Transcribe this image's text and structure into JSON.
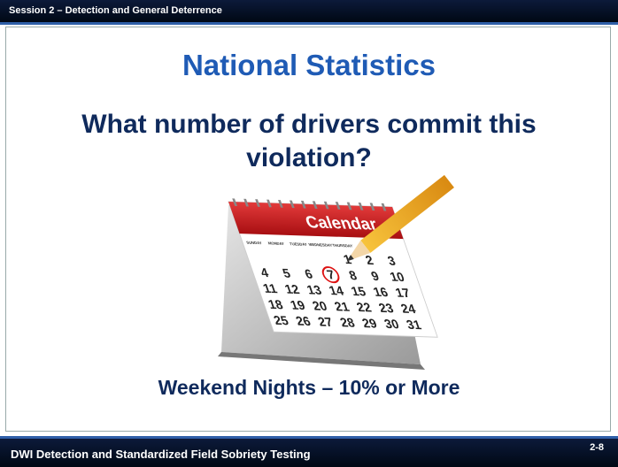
{
  "header": {
    "session": "Session 2 – Detection and General Deterrence"
  },
  "title": "National Statistics",
  "question": "What number of drivers commit this violation?",
  "calendar": {
    "label": "Calendar",
    "weekdays": [
      "SUNDAY",
      "MONDAY",
      "TUESDAY",
      "WEDNESDAY",
      "THURSDAY"
    ],
    "rows": [
      [
        1,
        2,
        3
      ],
      [
        4,
        5,
        6,
        7,
        8,
        9,
        10
      ],
      [
        11,
        12,
        13,
        14,
        15,
        16,
        17
      ],
      [
        18,
        19,
        20,
        21,
        22,
        23,
        24
      ],
      [
        25,
        26,
        27,
        28,
        29,
        30,
        31
      ]
    ]
  },
  "answer": "Weekend Nights – 10% or More",
  "footer": {
    "course": "DWI Detection and Standardized Field Sobriety Testing",
    "page": "2-8"
  }
}
